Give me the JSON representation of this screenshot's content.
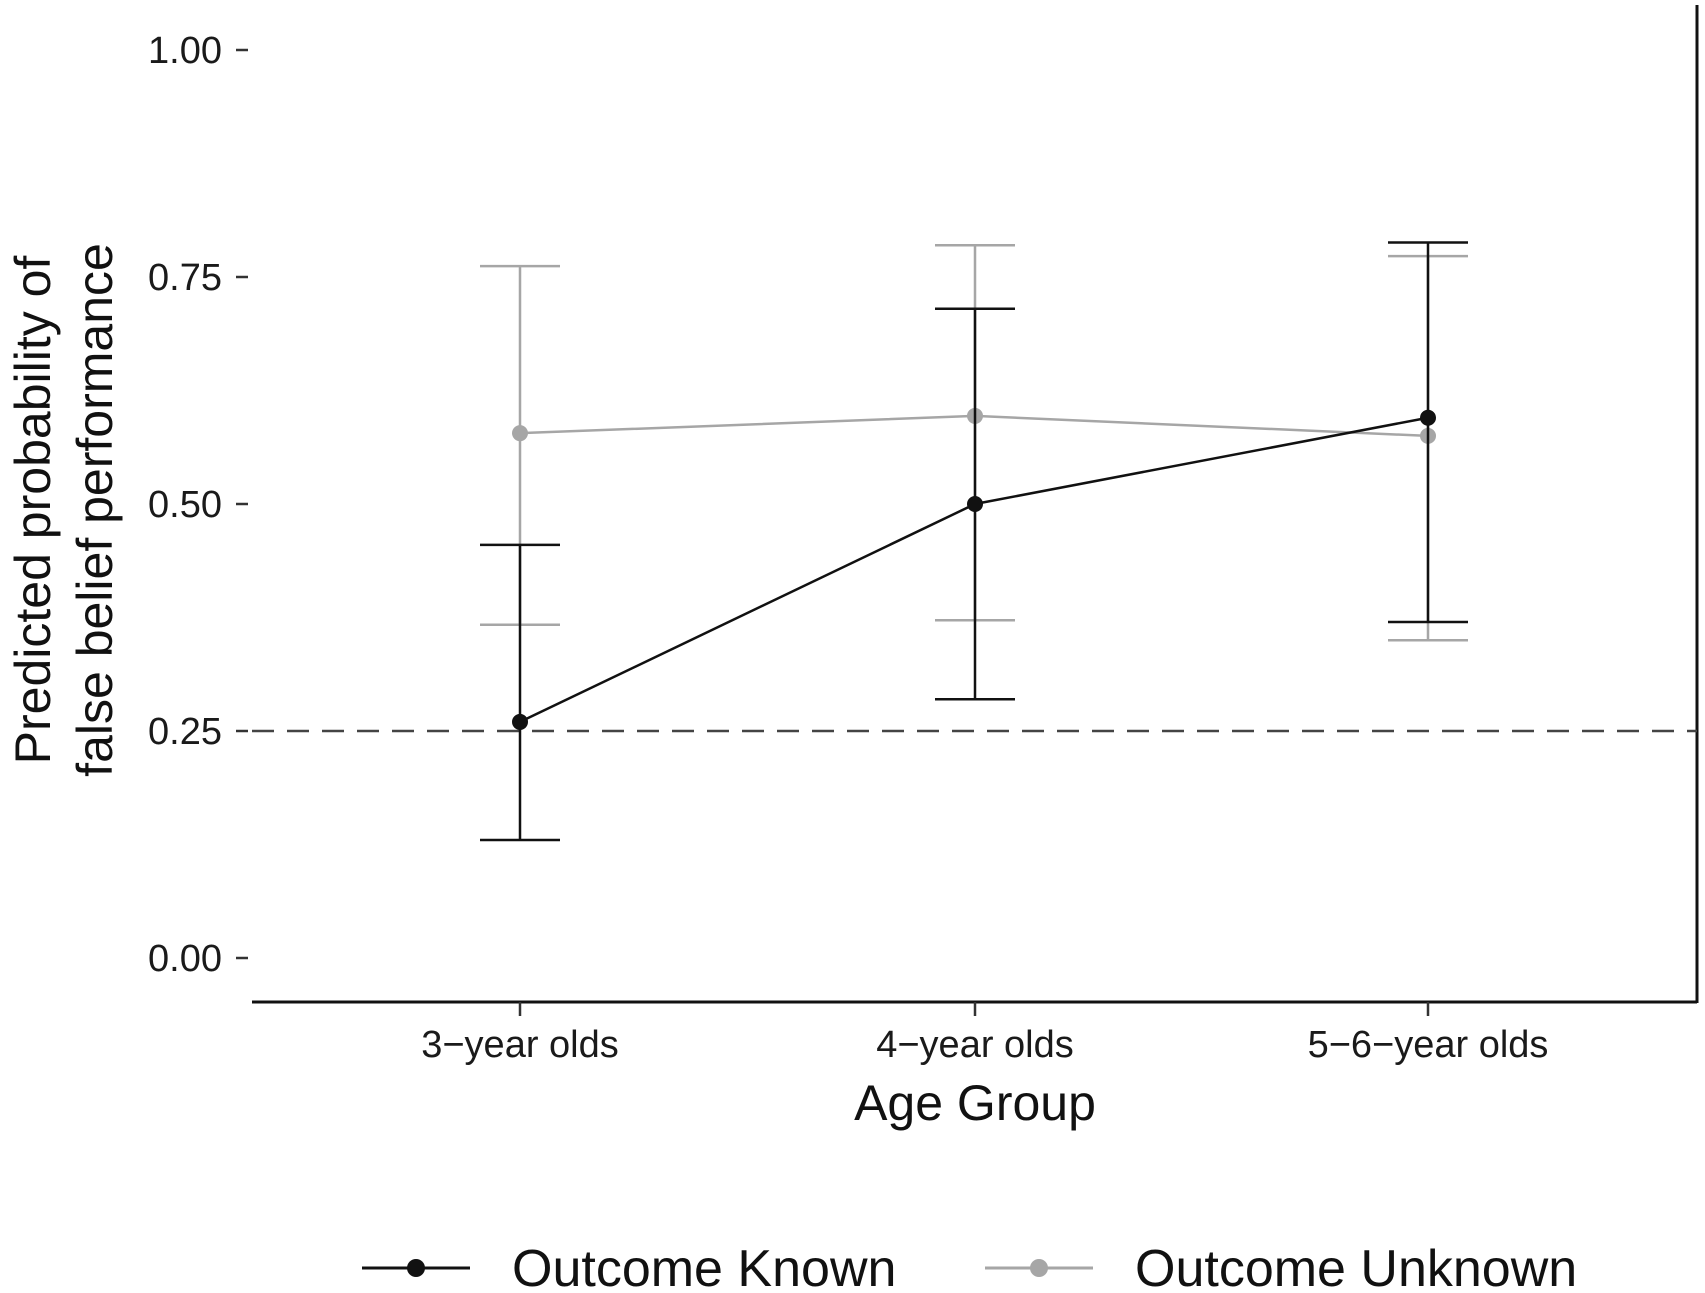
{
  "chart_data": {
    "type": "line",
    "title": "",
    "xlabel": "Age Group",
    "ylabel_lines": [
      "Predicted probability of",
      "false belief performance"
    ],
    "categories": [
      "3−year olds",
      "4−year olds",
      "5−6−year olds"
    ],
    "ylim": [
      0,
      1
    ],
    "yticks": [
      "0.00",
      "0.25",
      "0.50",
      "0.75",
      "1.00"
    ],
    "reference_line": {
      "y": 0.25,
      "style": "dashed"
    },
    "legend_position": "bottom",
    "series": [
      {
        "name": "Outcome Known",
        "color": "#111111",
        "values": [
          0.26,
          0.5,
          0.595
        ],
        "ci_lower": [
          0.13,
          0.285,
          0.37
        ],
        "ci_upper": [
          0.455,
          0.715,
          0.788
        ]
      },
      {
        "name": "Outcome Unknown",
        "color": "#a6a6a6",
        "values": [
          0.578,
          0.597,
          0.575
        ],
        "ci_lower": [
          0.367,
          0.372,
          0.35
        ],
        "ci_upper": [
          0.762,
          0.785,
          0.773
        ]
      }
    ]
  }
}
